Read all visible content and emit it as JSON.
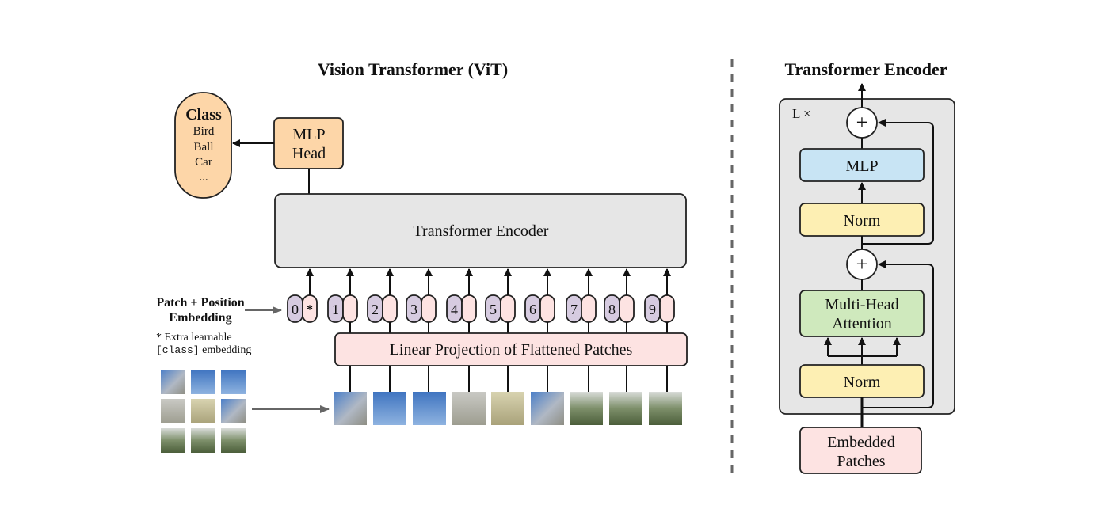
{
  "vit": {
    "title": "Vision Transformer (ViT)",
    "class_box": {
      "heading": "Class",
      "items": [
        "Bird",
        "Ball",
        "Car",
        "..."
      ]
    },
    "mlp_head": [
      "MLP",
      "Head"
    ],
    "transformer_encoder": "Transformer Encoder",
    "embedding_label": [
      "Patch + Position",
      "Embedding"
    ],
    "footnote": {
      "line1": "* Extra learnable",
      "code": "[class]",
      "line2": " embedding"
    },
    "tokens": [
      "0",
      "1",
      "2",
      "3",
      "4",
      "5",
      "6",
      "7",
      "8",
      "9"
    ],
    "class_token_marker": "*",
    "linear_projection": "Linear Projection of Flattened Patches"
  },
  "encoder": {
    "title": "Transformer Encoder",
    "repeat": "L ×",
    "plus": "+",
    "mlp": "MLP",
    "norm": "Norm",
    "attention": [
      "Multi-Head",
      "Attention"
    ],
    "input": [
      "Embedded",
      "Patches"
    ]
  },
  "colors": {
    "orange": "#fdd6a8",
    "gray": "#e6e6e6",
    "pink": "#fde3e2",
    "purple": "#d6cbe0",
    "blue": "#c8e4f4",
    "yellow": "#fdefb3",
    "green": "#cfe9bd"
  }
}
